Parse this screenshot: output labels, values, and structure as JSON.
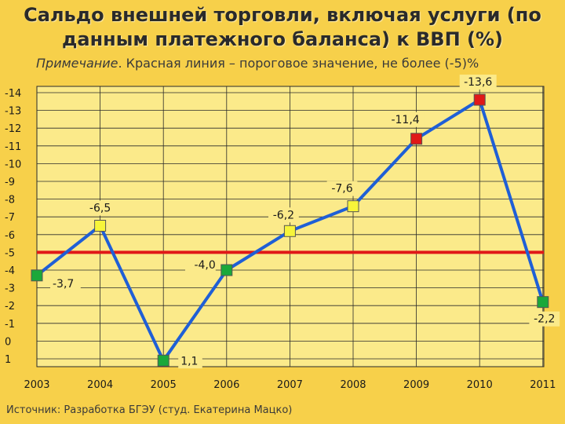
{
  "header": {
    "title_line1": "Сальдо внешней торговли, включая услуги (по",
    "title_line2": "данным платежного баланса) к ВВП (%)",
    "note_lead": "Примечание",
    "note_text": ". Красная линия – пороговое значение, не более (-5)%"
  },
  "footer": {
    "source": "Источник: Разработка БГЭУ (студ. Екатерина Мацко)"
  },
  "colors": {
    "background": "#f7d04a",
    "plot_area": "#fbea8a",
    "line": "#1f5fd6",
    "threshold": "#e01818",
    "marker_green": "#1aa83a",
    "marker_yellow": "#f7f53a",
    "marker_red": "#e01818"
  },
  "chart_data": {
    "type": "line",
    "categories": [
      "2003",
      "2004",
      "2005",
      "2006",
      "2007",
      "2008",
      "2009",
      "2010",
      "2011"
    ],
    "y_axis_inverted": true,
    "ylim": [
      1,
      -14
    ],
    "yticks": [
      -14,
      -13,
      -12,
      -11,
      -10,
      -9,
      -8,
      -7,
      -6,
      -5,
      -4,
      -3,
      -2,
      -1,
      0,
      1
    ],
    "ytick_labels": [
      "-14",
      "-13",
      "-12",
      "-11",
      "-10",
      "-9",
      "-8",
      "-7",
      "-6",
      "-5",
      "-4",
      "-3",
      "-2",
      "-1",
      "0",
      "1"
    ],
    "grid": true,
    "threshold": -5,
    "series": [
      {
        "values": [
          -3.7,
          -6.5,
          1.1,
          -4.0,
          -6.2,
          -7.6,
          -11.4,
          -13.6,
          -2.2
        ],
        "data_labels": [
          "-3,7",
          "-6,5",
          "1,1",
          "-4,0",
          "-6,2",
          "-7,6",
          "-11,4",
          "-13,6",
          "-2,2"
        ],
        "marker_colors": [
          "green",
          "yellow",
          "green",
          "green",
          "yellow",
          "yellow",
          "red",
          "red",
          "green"
        ]
      }
    ]
  }
}
